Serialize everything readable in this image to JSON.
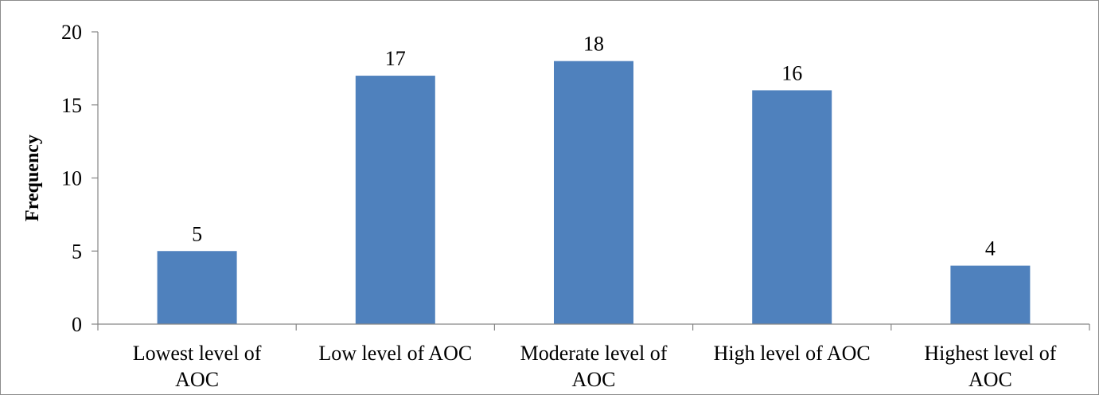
{
  "chart_data": {
    "type": "bar",
    "title": "",
    "xlabel": "",
    "ylabel": "Frequency",
    "ylim": [
      0,
      20
    ],
    "yticks": [
      0,
      5,
      10,
      15,
      20
    ],
    "grid": false,
    "legend": "none",
    "categories": [
      [
        "Lowest level of",
        "AOC"
      ],
      [
        "Low level of AOC"
      ],
      [
        "Moderate level of",
        "AOC"
      ],
      [
        "High level of AOC"
      ],
      [
        "Highest level of",
        "AOC"
      ]
    ],
    "values": [
      5,
      17,
      18,
      16,
      4
    ],
    "data_labels": [
      "5",
      "17",
      "18",
      "16",
      "4"
    ],
    "bar_color": "#4f81bd",
    "axis_color": "#868686"
  }
}
